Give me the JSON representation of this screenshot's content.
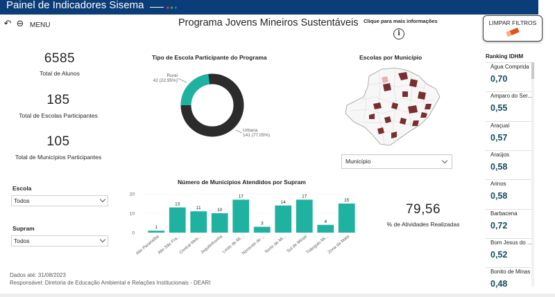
{
  "header": {
    "title": "Painel de Indicadores Sisema"
  },
  "toolbar": {
    "menu_label": "MENU",
    "back_icon": "back-arrow-icon",
    "reset_icon": "reset-icon"
  },
  "page": {
    "title": "Programa Jovens Mineiros Sustentáveis",
    "info_label": "Clique para mais informações",
    "info_icon": "i"
  },
  "clear_filters": {
    "label": "LIMPAR FILTROS"
  },
  "kpis": [
    {
      "value": "6585",
      "label": "Total de Alunos"
    },
    {
      "value": "185",
      "label": "Total de Escolas Participantes"
    },
    {
      "value": "105",
      "label": "Total de Municípios Participantes"
    }
  ],
  "slicers": {
    "escola": {
      "title": "Escola",
      "value": "Todos"
    },
    "supram": {
      "title": "Supram",
      "value": "Todos"
    }
  },
  "donut": {
    "title": "Tipo de Escola Participante do Programa",
    "rural_label": "Rural",
    "rural_detail": "42 (22,95%)",
    "urbana_label": "Urbana",
    "urbana_detail": "141 (77,05%)"
  },
  "map": {
    "title": "Escolas por Município",
    "dropdown_value": "Município"
  },
  "bar": {
    "title": "Número de Municípios Atendidos por Supram"
  },
  "activities": {
    "value": "79,56",
    "label": "% de Atividades Realizadas"
  },
  "footer": {
    "date_line": "Dados até: 31/08/2023",
    "responsible_line": "Responsável: Diretoria de Educação Ambiental e Relações Institucionais - DEARI"
  },
  "ranking": {
    "title": "Ranking IDHM",
    "items": [
      {
        "name": "Água Comprida",
        "value": "0,70"
      },
      {
        "name": "Amparo do Ser...",
        "value": "0,55"
      },
      {
        "name": "Araçuaí",
        "value": "0,57"
      },
      {
        "name": "Araújos",
        "value": "0,58"
      },
      {
        "name": "Arinos",
        "value": "0,58"
      },
      {
        "name": "Barbacena",
        "value": "0,72"
      },
      {
        "name": "Bom Jesus do ...",
        "value": "0,52"
      },
      {
        "name": "Bonito de Minas",
        "value": "0,48"
      }
    ]
  },
  "colors": {
    "teal": "#20b2a0",
    "dark": "#2c2c2c",
    "navy": "#0b3d78",
    "map_dark": "#7a2e2e"
  },
  "chart_data": [
    {
      "type": "pie",
      "title": "Tipo de Escola Participante do Programa",
      "labels": [
        "Urbana",
        "Rural"
      ],
      "values": [
        141,
        42
      ],
      "percents": [
        77.05,
        22.95
      ]
    },
    {
      "type": "bar",
      "title": "Número de Municípios Atendidos por Supram",
      "categories": [
        "Alto Paranaíba",
        "Alto São Fra...",
        "Central Metr...",
        "Jequitinhonha",
        "Leste de Mi...",
        "Noroeste de ...",
        "Norte de Mi...",
        "Sul de Minas",
        "Triângulo Mi...",
        "Zona da Mata"
      ],
      "values": [
        1,
        13,
        11,
        10,
        17,
        3,
        14,
        17,
        4,
        15
      ],
      "yticks": [
        0,
        10,
        20
      ],
      "ylim": [
        0,
        20
      ]
    }
  ]
}
